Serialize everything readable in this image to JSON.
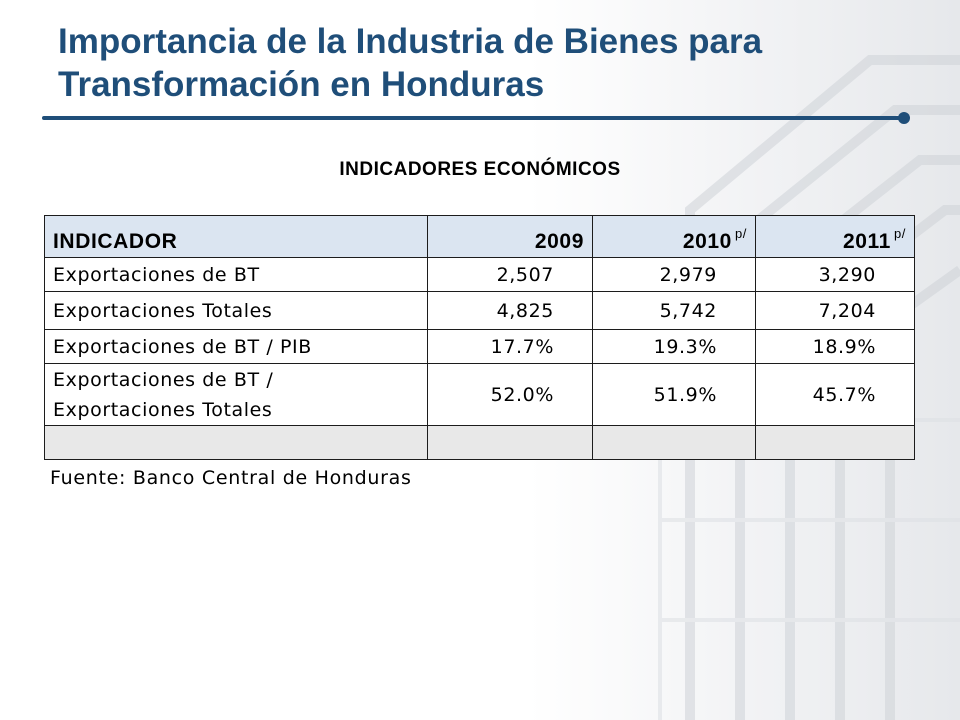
{
  "slide": {
    "title_line1": "Importancia de la Industria de Bienes para",
    "title_line2": "Transformación en Honduras",
    "subtitle": "INDICADORES ECONÓMICOS",
    "accent_color": "#1f4e79",
    "header_fill_color": "#dbe5f1"
  },
  "table": {
    "headers": {
      "indicador": "INDICADOR",
      "y2009": "2009",
      "y2010": "2010",
      "y2010_sup": "p/",
      "y2011": "2011",
      "y2011_sup": "p/"
    },
    "rows": [
      {
        "label": "Exportaciones de BT",
        "v2009": "2,507",
        "v2010": "2,979",
        "v2011": "3,290"
      },
      {
        "label": "Exportaciones Totales",
        "v2009": "4,825",
        "v2010": "5,742",
        "v2011": "7,204"
      },
      {
        "label": "Exportaciones de BT / PIB",
        "v2009": "17.7%",
        "v2010": "19.3%",
        "v2011": "18.9%"
      },
      {
        "label_line1": "Exportaciones de BT /",
        "label_line2": "Exportaciones Totales",
        "v2009": "52.0%",
        "v2010": "51.9%",
        "v2011": "45.7%"
      }
    ]
  },
  "source": "Fuente: Banco Central de Honduras"
}
